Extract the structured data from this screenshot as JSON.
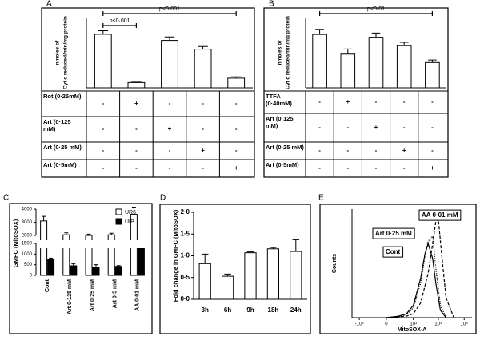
{
  "chart_data": [
    {
      "type": "bar",
      "panel": "A",
      "ylabel": [
        "nmoles of",
        "Cyt c reduced/min/mg protein"
      ],
      "values": [
        61,
        6,
        54,
        44,
        11
      ],
      "errors": [
        4,
        0.5,
        4,
        3,
        1.5
      ],
      "color": "#ffffff",
      "ylim": [
        0,
        80
      ],
      "annotations": [
        "p<0·001",
        "p<0·001"
      ],
      "table": {
        "rows": [
          {
            "label": "Rot (0·25mM)",
            "marks": [
              "-",
              "+",
              "-",
              "-",
              "-"
            ]
          },
          {
            "label": "Art (0·125 mM)",
            "marks": [
              "-",
              "-",
              "+",
              "-",
              "-"
            ]
          },
          {
            "label": "Art (0·25 mM)",
            "marks": [
              "-",
              "-",
              "-",
              "+",
              "-"
            ]
          },
          {
            "label": "Art (0·5mM)",
            "marks": [
              "-",
              "-",
              "-",
              "-",
              "+"
            ]
          }
        ]
      }
    },
    {
      "type": "bar",
      "panel": "B",
      "ylabel": [
        "nmoles of",
        "Cyt c reduced/min/mg protein"
      ],
      "values": [
        19,
        12,
        18,
        15,
        9
      ],
      "errors": [
        1.8,
        1.8,
        1.5,
        1.2,
        0.9
      ],
      "color": "#ffffff",
      "ylim": [
        0,
        25
      ],
      "annotations": [
        "p<0·01"
      ],
      "table": {
        "rows": [
          {
            "label": "TTFA (0·40mM)",
            "marks": [
              "-",
              "+",
              "-",
              "-",
              "-"
            ]
          },
          {
            "label": "Art (0·125 mM)",
            "marks": [
              "-",
              "-",
              "+",
              "-",
              "-"
            ]
          },
          {
            "label": "Art (0·25 mM)",
            "marks": [
              "-",
              "-",
              "-",
              "+",
              "-"
            ]
          },
          {
            "label": "Art (0·5mM)",
            "marks": [
              "-",
              "-",
              "-",
              "-",
              "+"
            ]
          }
        ]
      }
    },
    {
      "type": "grouped-bar",
      "panel": "C",
      "ylabel": "GMFC (MitoSOX)",
      "categories": [
        "Cont",
        "Art 0·125 mM",
        "Art 0·25 mM",
        "Art 0·5 mM",
        "AA 0·01 mM"
      ],
      "series": [
        {
          "name": "UR6",
          "color": "#ffffff",
          "values": [
            3100,
            2050,
            2000,
            2050,
            3600
          ],
          "errors": [
            350,
            150,
            100,
            120,
            550
          ]
        },
        {
          "name": "UIP",
          "color": "#000000",
          "values": [
            750,
            450,
            380,
            420,
            1350
          ],
          "errors": [
            60,
            90,
            120,
            40,
            130
          ]
        }
      ],
      "ylim": [
        0,
        4000
      ],
      "ybreak": [
        1500,
        2000
      ],
      "yticks": [
        0,
        500,
        1000,
        1500,
        2000,
        3000,
        4000
      ]
    },
    {
      "type": "bar",
      "panel": "D",
      "ylabel": "Fold change in GMFC (MitoSOX)",
      "categories": [
        "3h",
        "6h",
        "9h",
        "18h",
        "24h"
      ],
      "values": [
        0.82,
        0.53,
        1.07,
        1.16,
        1.1
      ],
      "errors": [
        0.22,
        0.05,
        0.02,
        0.03,
        0.27
      ],
      "color": "#ffffff",
      "ylim": [
        0,
        2
      ],
      "yticks": [
        {
          "value": 0,
          "label": "0·0"
        },
        {
          "value": 0.5,
          "label": "0·5"
        },
        {
          "value": 1,
          "label": "1·0"
        },
        {
          "value": 1.5,
          "label": "1·5"
        },
        {
          "value": 2,
          "label": "2·0"
        }
      ]
    },
    {
      "type": "flow-histogram",
      "panel": "E",
      "xlabel": "MitoSOX-A",
      "ylabel": "Counts",
      "xscale": "symlog",
      "xlim": [
        -2000,
        200000
      ],
      "ylim": [
        0,
        220
      ],
      "xticks": [
        {
          "value": -1000,
          "label": "-10³"
        },
        0,
        {
          "value": 1000,
          "label": "10³"
        },
        {
          "value": 10000,
          "label": "10⁴"
        },
        {
          "value": 100000,
          "label": "10⁵"
        }
      ],
      "series": [
        {
          "name": "AA 0·01 mM",
          "color": "#000000",
          "dash": "dashed",
          "x": [
            0,
            500,
            1000,
            2000,
            4000,
            6000,
            8000,
            10000,
            14000,
            20000,
            40000
          ],
          "values": [
            0,
            3,
            8,
            30,
            90,
            150,
            195,
            200,
            120,
            40,
            0
          ]
        },
        {
          "name": "Art 0·25 mM",
          "color": "#000000",
          "dash": "dotted",
          "x": [
            0,
            200,
            500,
            1000,
            2000,
            3000,
            4000,
            6000,
            8000,
            12000,
            20000
          ],
          "values": [
            0,
            2,
            6,
            20,
            70,
            125,
            155,
            165,
            100,
            25,
            0
          ]
        },
        {
          "name": "Cont",
          "color": "#000000",
          "dash": "solid",
          "x": [
            0,
            200,
            500,
            1000,
            2000,
            3000,
            4000,
            6000,
            8000,
            12000,
            20000
          ],
          "values": [
            0,
            3,
            8,
            25,
            80,
            130,
            150,
            120,
            70,
            15,
            0
          ]
        }
      ]
    }
  ]
}
